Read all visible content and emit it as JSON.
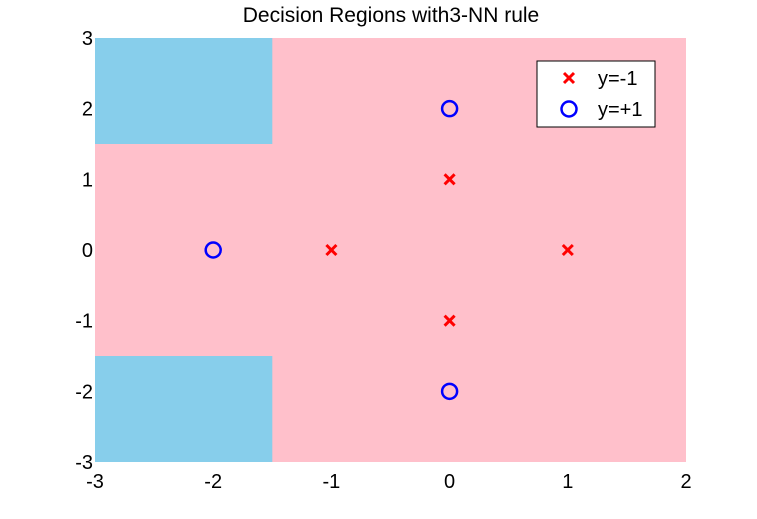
{
  "chart_data": {
    "type": "scatter",
    "title": "Decision Regions with3-NN rule",
    "xlabel": "",
    "ylabel": "",
    "xlim": [
      -3,
      2
    ],
    "ylim": [
      -3,
      3
    ],
    "x_ticks": [
      -3,
      -2,
      -1,
      0,
      1,
      2
    ],
    "y_ticks": [
      -3,
      -2,
      -1,
      0,
      1,
      2,
      3
    ],
    "x_tick_labels": [
      "-3",
      "-2",
      "-1",
      "0",
      "1",
      "2"
    ],
    "y_tick_labels": [
      "-3",
      "-2",
      "-1",
      "0",
      "1",
      "2",
      "3"
    ],
    "grid": false,
    "legend_position": "top-right",
    "series": [
      {
        "name": "y=-1",
        "marker": "x",
        "color": "#ff0000",
        "points": [
          [
            0,
            1
          ],
          [
            -1,
            0
          ],
          [
            1,
            0
          ],
          [
            0,
            -1
          ]
        ]
      },
      {
        "name": "y=+1",
        "marker": "o",
        "color": "#0000ff",
        "points": [
          [
            0,
            2
          ],
          [
            -2,
            0
          ],
          [
            0,
            -2
          ]
        ]
      }
    ],
    "regions": [
      {
        "class": "y=-1",
        "color": "#ffc0cb",
        "x": [
          -3,
          2
        ],
        "y": [
          -3,
          3
        ]
      },
      {
        "class": "y=+1",
        "color": "#87ceeb",
        "x": [
          -3,
          -1.5
        ],
        "y": [
          1.5,
          3
        ]
      },
      {
        "class": "y=+1",
        "color": "#87ceeb",
        "x": [
          -3,
          -1.5
        ],
        "y": [
          -3,
          -1.5
        ]
      }
    ]
  }
}
